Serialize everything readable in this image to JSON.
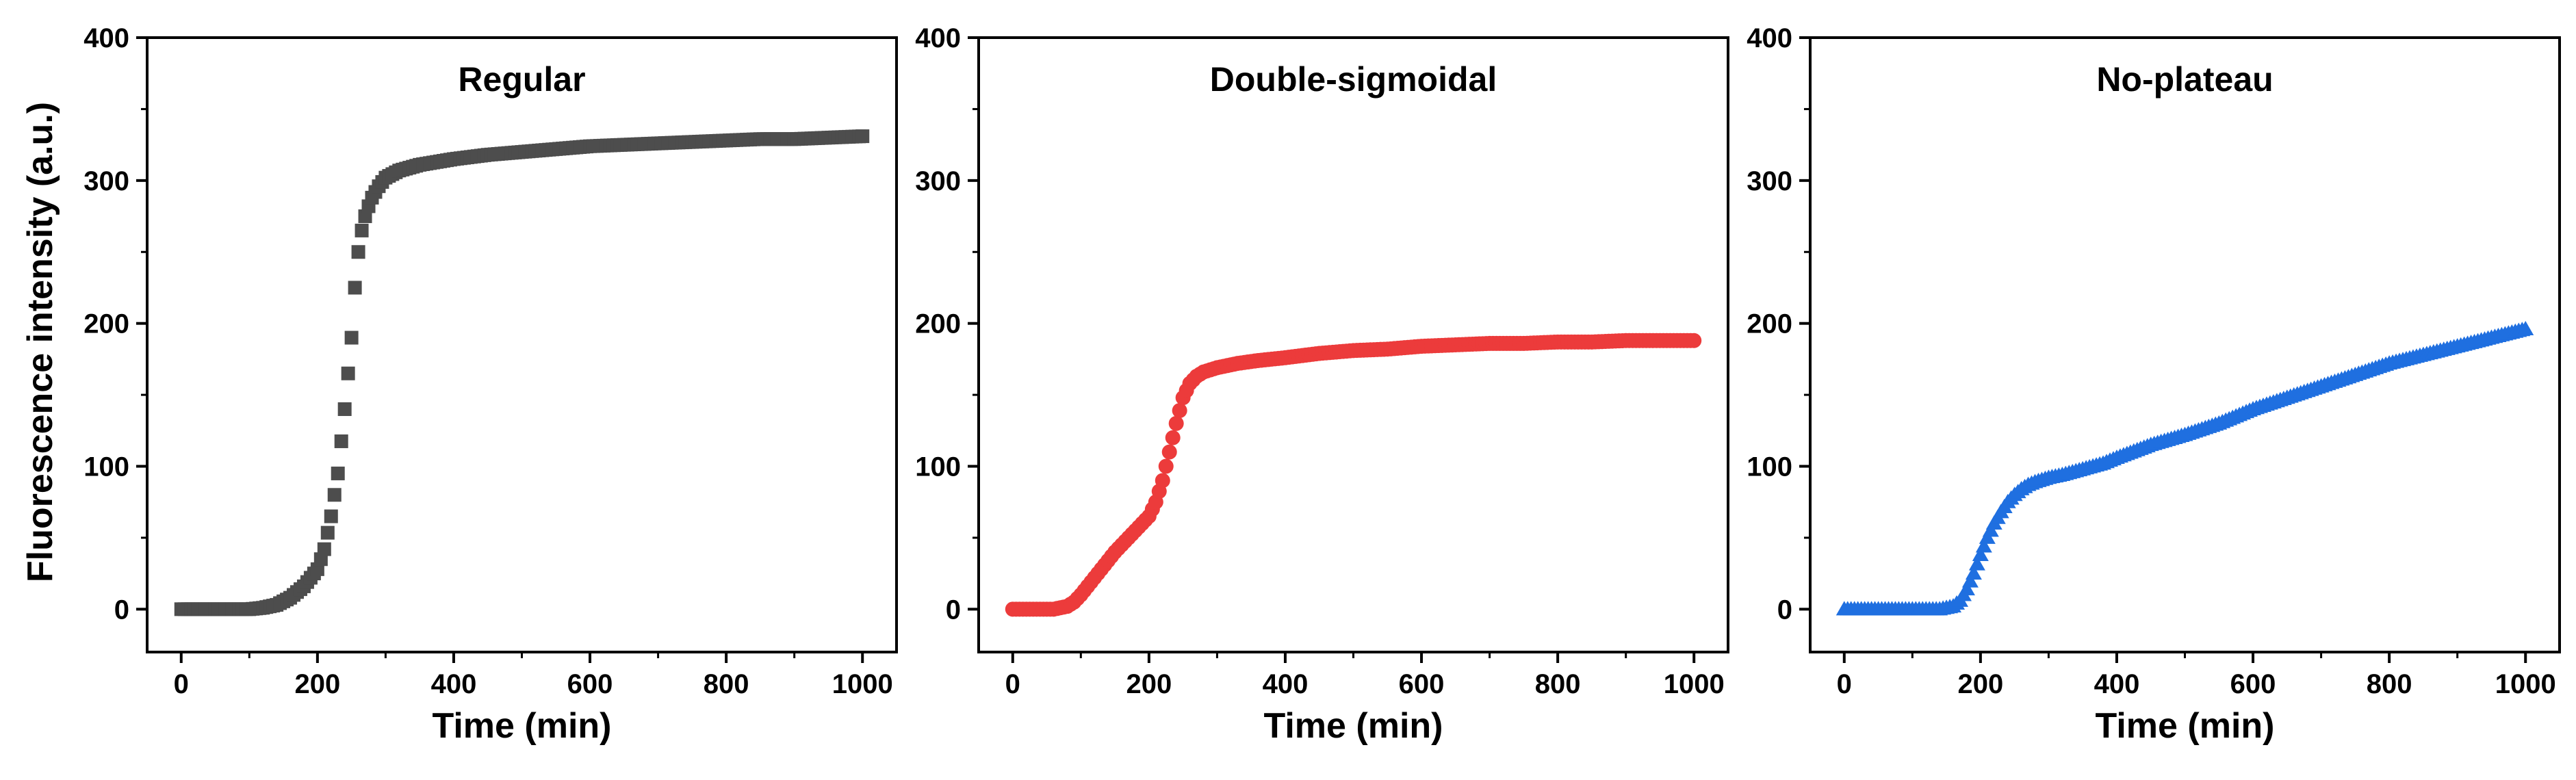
{
  "figure": {
    "ylabel": "Fluorescence intensity (a.u.)"
  },
  "chart_data": [
    {
      "type": "scatter",
      "title": "Regular",
      "xlabel": "Time (min)",
      "ylabel": "Fluorescence intensity (a.u.)",
      "xlim": [
        -50,
        1050
      ],
      "ylim": [
        -30,
        400
      ],
      "xticks": [
        0,
        200,
        400,
        600,
        800,
        1000
      ],
      "yticks": [
        0,
        100,
        200,
        300,
        400
      ],
      "xtick_labels": [
        "0",
        "200",
        "400",
        "600",
        "800",
        "1000"
      ],
      "ytick_labels": [
        "0",
        "100",
        "200",
        "300",
        "400"
      ],
      "marker": "square",
      "color": "#4d4d4d",
      "series": [
        {
          "name": "Regular",
          "x": [
            0,
            20,
            40,
            60,
            80,
            100,
            120,
            140,
            160,
            180,
            200,
            210,
            220,
            230,
            240,
            250,
            255,
            260,
            265,
            270,
            275,
            280,
            290,
            300,
            320,
            350,
            400,
            450,
            500,
            550,
            600,
            650,
            700,
            750,
            800,
            850,
            900,
            950,
            1000
          ],
          "y": [
            0,
            0,
            0,
            0,
            0,
            0,
            1,
            3,
            8,
            16,
            28,
            42,
            65,
            95,
            140,
            190,
            225,
            250,
            265,
            275,
            282,
            288,
            296,
            302,
            307,
            311,
            315,
            318,
            320,
            322,
            324,
            325,
            326,
            327,
            328,
            329,
            329,
            330,
            331
          ]
        }
      ]
    },
    {
      "type": "scatter",
      "title": "Double-sigmoidal",
      "xlabel": "Time (min)",
      "xlim": [
        -50,
        1050
      ],
      "ylim": [
        -30,
        400
      ],
      "xticks": [
        0,
        200,
        400,
        600,
        800,
        1000
      ],
      "yticks": [
        0,
        100,
        200,
        300,
        400
      ],
      "xtick_labels": [
        "0",
        "200",
        "400",
        "600",
        "800",
        "1000"
      ],
      "ytick_labels": [
        "0",
        "100",
        "200",
        "300",
        "400"
      ],
      "marker": "circle",
      "color": "#ec3b3b",
      "series": [
        {
          "name": "Double-sigmoidal",
          "x": [
            0,
            20,
            40,
            60,
            70,
            80,
            90,
            100,
            110,
            120,
            130,
            140,
            150,
            160,
            170,
            180,
            190,
            200,
            210,
            220,
            230,
            240,
            250,
            260,
            270,
            280,
            300,
            330,
            360,
            400,
            450,
            500,
            550,
            600,
            650,
            700,
            750,
            800,
            850,
            900,
            950,
            1000
          ],
          "y": [
            0,
            0,
            0,
            0,
            1,
            2,
            5,
            10,
            16,
            22,
            28,
            34,
            40,
            45,
            50,
            55,
            60,
            65,
            75,
            90,
            110,
            130,
            148,
            158,
            163,
            166,
            169,
            172,
            174,
            176,
            179,
            181,
            182,
            184,
            185,
            186,
            186,
            187,
            187,
            188,
            188,
            188
          ]
        }
      ]
    },
    {
      "type": "scatter",
      "title": "No-plateau",
      "xlabel": "Time (min)",
      "xlim": [
        -50,
        1050
      ],
      "ylim": [
        -30,
        400
      ],
      "xticks": [
        0,
        200,
        400,
        600,
        800,
        1000
      ],
      "yticks": [
        0,
        100,
        200,
        300,
        400
      ],
      "xtick_labels": [
        "0",
        "200",
        "400",
        "600",
        "800",
        "1000"
      ],
      "ytick_labels": [
        "0",
        "100",
        "200",
        "300",
        "400"
      ],
      "marker": "triangle",
      "color": "#1f6fe0",
      "series": [
        {
          "name": "No-plateau",
          "x": [
            0,
            20,
            40,
            60,
            80,
            100,
            120,
            140,
            160,
            170,
            180,
            190,
            200,
            210,
            220,
            230,
            240,
            250,
            260,
            270,
            280,
            300,
            320,
            350,
            380,
            400,
            450,
            500,
            550,
            600,
            650,
            700,
            750,
            800,
            850,
            900,
            950,
            1000
          ],
          "y": [
            0,
            0,
            0,
            0,
            0,
            0,
            0,
            0,
            2,
            6,
            14,
            25,
            38,
            50,
            60,
            68,
            75,
            80,
            84,
            87,
            89,
            92,
            94,
            98,
            102,
            106,
            115,
            122,
            130,
            140,
            148,
            156,
            164,
            172,
            178,
            184,
            190,
            196
          ]
        }
      ]
    }
  ]
}
